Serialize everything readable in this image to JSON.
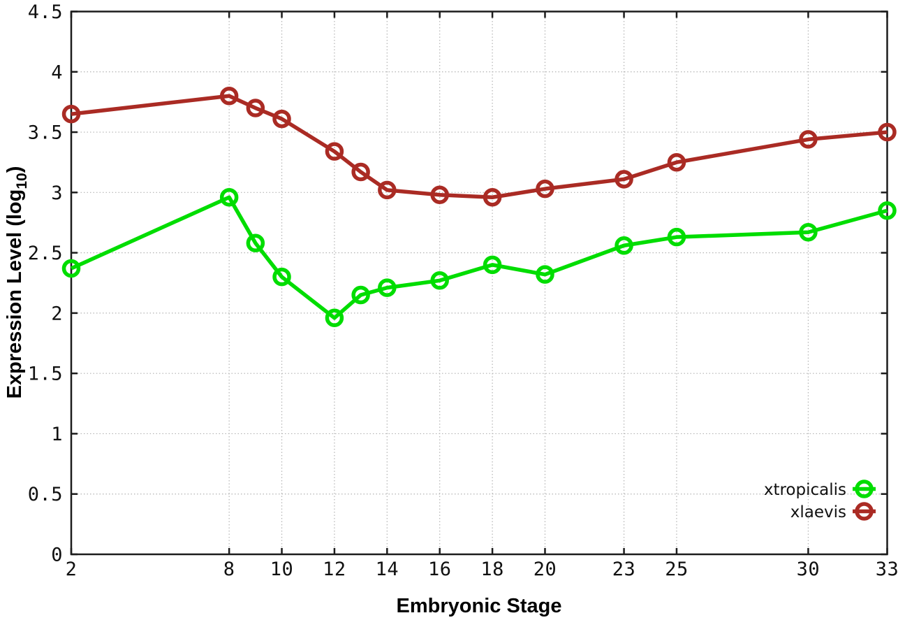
{
  "chart_data": {
    "type": "line",
    "title": "",
    "xlabel": "Embryonic Stage",
    "ylabel": "Expression Level (log10)",
    "ylabel_parts": {
      "main": "Expression Level (log",
      "sub": "10",
      "close": ")"
    },
    "x": [
      2,
      8,
      9,
      10,
      12,
      13,
      14,
      16,
      18,
      20,
      23,
      25,
      30,
      33
    ],
    "xticks": [
      2,
      8,
      10,
      12,
      14,
      16,
      18,
      20,
      23,
      25,
      30,
      33
    ],
    "xtick_labels": [
      "2",
      "8",
      "10",
      "12",
      "14",
      "16",
      "18",
      "20",
      "23",
      "25",
      "30",
      "33"
    ],
    "yticks": [
      0,
      0.5,
      1,
      1.5,
      2,
      2.5,
      3,
      3.5,
      4,
      4.5
    ],
    "ytick_labels": [
      "0",
      "0.5",
      "1",
      "1.5",
      "2",
      "2.5",
      "3",
      "3.5",
      "4",
      "4.5"
    ],
    "xlim": [
      2,
      33
    ],
    "ylim": [
      0,
      4.5
    ],
    "grid": true,
    "legend_position": "inside-bottom-right",
    "marker": "open-circle",
    "series": [
      {
        "name": "xtropicalis",
        "color": "#00dd00",
        "values": [
          2.37,
          2.96,
          2.58,
          2.3,
          1.96,
          2.15,
          2.21,
          2.27,
          2.4,
          2.32,
          2.56,
          2.63,
          2.67,
          2.85
        ]
      },
      {
        "name": "xlaevis",
        "color": "#aa2b24",
        "values": [
          3.65,
          3.8,
          3.7,
          3.61,
          3.34,
          3.17,
          3.02,
          2.98,
          2.96,
          3.03,
          3.11,
          3.25,
          3.44,
          3.5
        ]
      }
    ],
    "colors": {
      "grid": "#b3b3b3",
      "axis": "#1c1c1c",
      "background": "#ffffff"
    }
  }
}
